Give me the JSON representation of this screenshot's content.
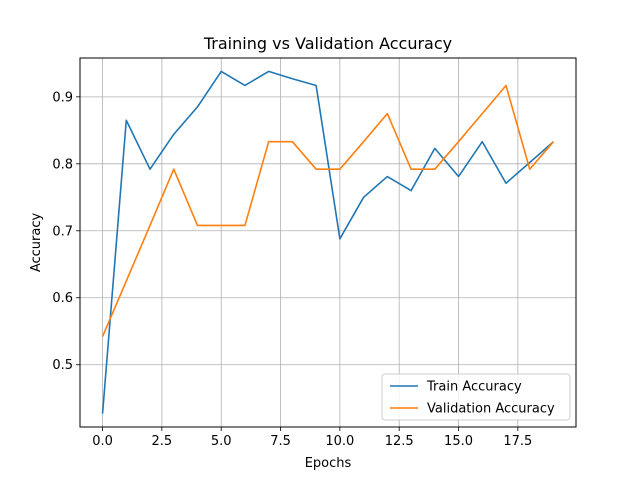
{
  "chart_data": {
    "type": "line",
    "title": "Training vs Validation Accuracy",
    "xlabel": "Epochs",
    "ylabel": "Accuracy",
    "xlim": [
      -0.95,
      19.95
    ],
    "ylim": [
      0.407,
      0.958
    ],
    "xticks": [
      0.0,
      2.5,
      5.0,
      7.5,
      10.0,
      12.5,
      15.0,
      17.5
    ],
    "xtick_labels": [
      "0.0",
      "2.5",
      "5.0",
      "7.5",
      "10.0",
      "12.5",
      "15.0",
      "17.5"
    ],
    "yticks": [
      0.5,
      0.6,
      0.7,
      0.8,
      0.9
    ],
    "ytick_labels": [
      "0.5",
      "0.6",
      "0.7",
      "0.8",
      "0.9"
    ],
    "grid": true,
    "legend_position": "bottom-right",
    "x": [
      0,
      1,
      2,
      3,
      4,
      5,
      6,
      7,
      8,
      9,
      10,
      11,
      12,
      13,
      14,
      15,
      16,
      17,
      18,
      19
    ],
    "series": [
      {
        "name": "Train Accuracy",
        "color": "#1f77b4",
        "values": [
          0.427,
          0.865,
          0.792,
          0.844,
          0.885,
          0.938,
          0.917,
          0.938,
          0.927,
          0.917,
          0.688,
          0.75,
          0.781,
          0.76,
          0.823,
          0.781,
          0.833,
          0.771,
          0.802,
          0.833
        ]
      },
      {
        "name": "Validation Accuracy",
        "color": "#ff7f0e",
        "values": [
          0.542,
          0.625,
          0.708,
          0.792,
          0.708,
          0.708,
          0.708,
          0.833,
          0.833,
          0.792,
          0.792,
          0.833,
          0.875,
          0.792,
          0.792,
          0.833,
          0.875,
          0.917,
          0.792,
          0.833
        ]
      }
    ]
  }
}
